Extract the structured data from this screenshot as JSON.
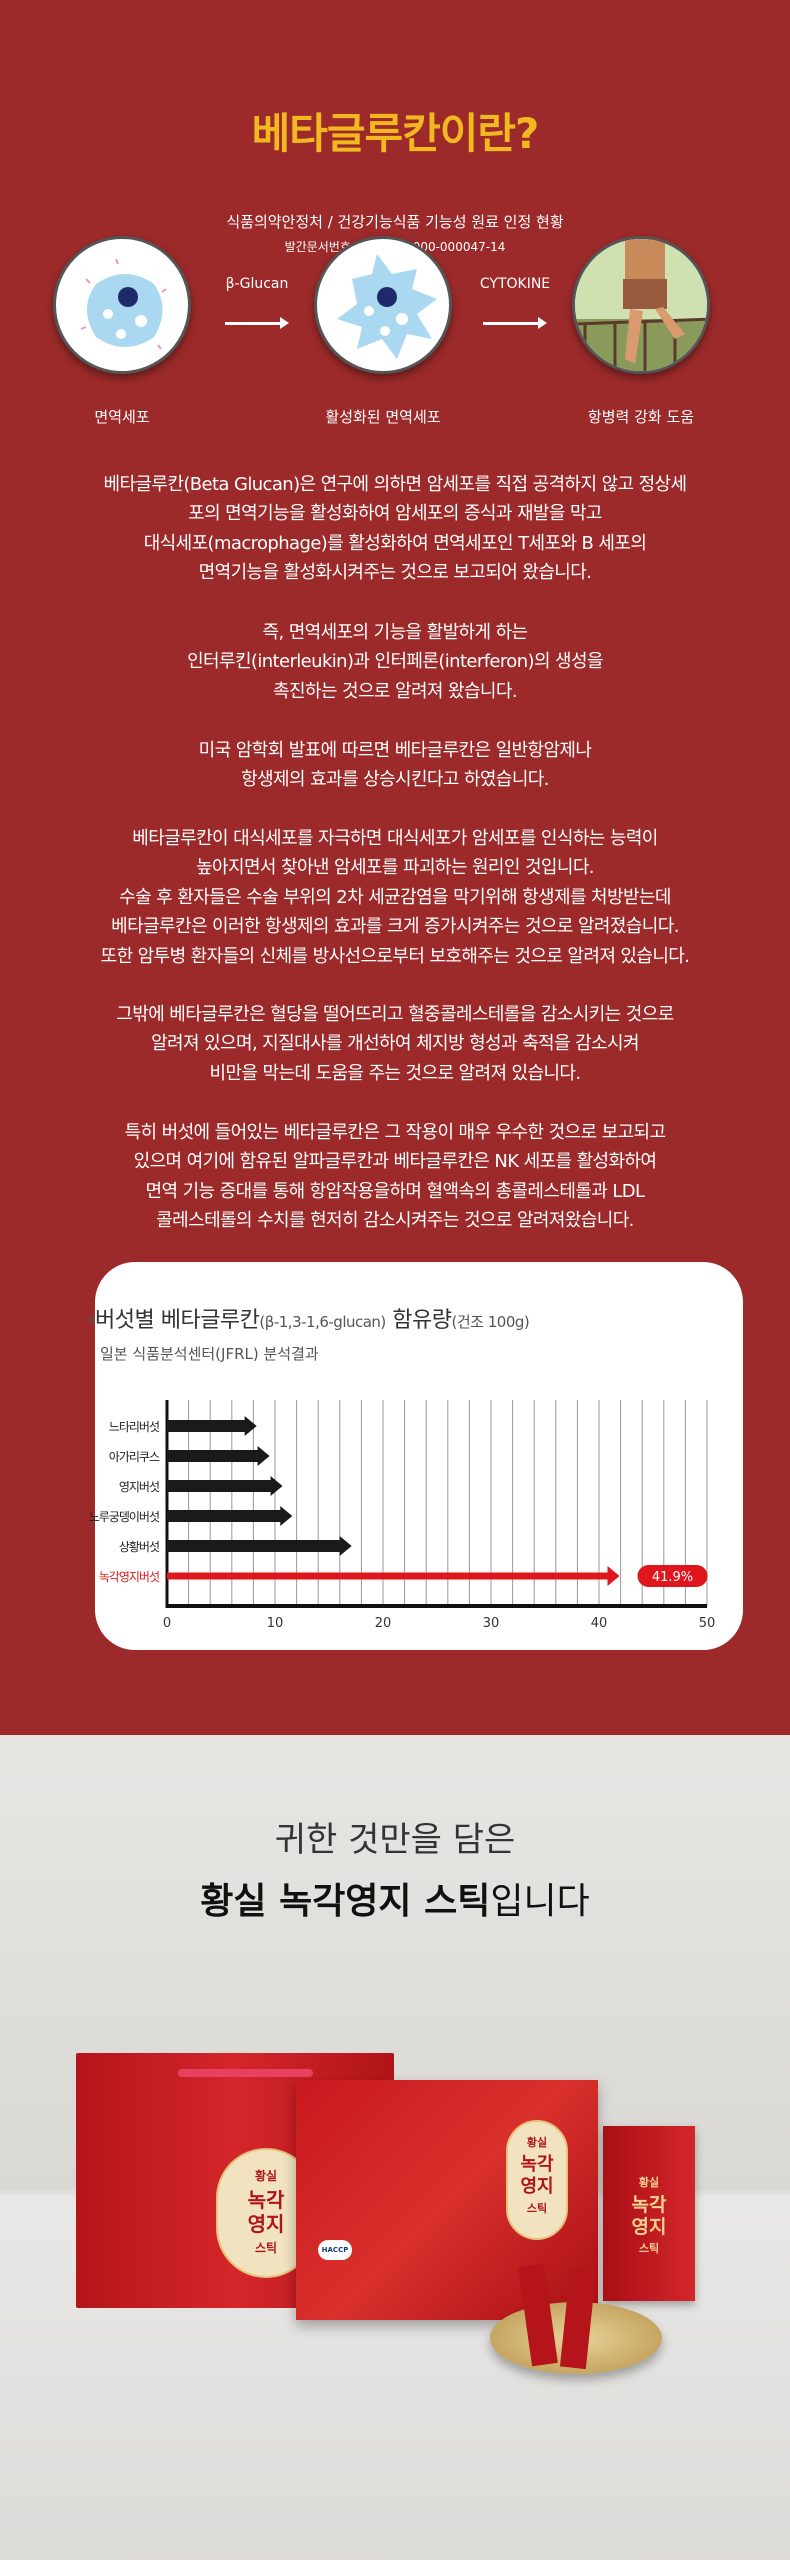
{
  "header": {
    "title": "베타글루칸이란?",
    "subtitle": "식품의약안정처 / 건강기능식품 기능성 원료 인정 현황",
    "doc_number": "발간문서번호 : 11-1471000-000047-14"
  },
  "diagram": {
    "steps": [
      {
        "label": "면역세포",
        "icon": "immune-cell-icon"
      },
      {
        "label": "활성화된 면역세포",
        "icon": "activated-cell-icon"
      },
      {
        "label": "항병력 강화 도움",
        "icon": "runner-photo"
      }
    ],
    "arrows": [
      "β-Glucan",
      "CYTOKINE"
    ]
  },
  "paragraphs": [
    [
      "베타글루칸(Beta Glucan)은 연구에 의하면 암세포를 직접 공격하지 않고 정상세",
      "포의 면역기능을 활성화하여 암세포의 증식과 재발을 막고",
      "대식세포(macrophage)를 활성화하여 면역세포인 T세포와 B 세포의",
      "면역기능을 활성화시켜주는 것으로 보고되어 왔습니다."
    ],
    [
      "즉, 면역세포의 기능을 활발하게 하는",
      "인터루킨(interleukin)과 인터페론(interferon)의 생성을",
      "촉진하는 것으로 알려져 왔습니다."
    ],
    [
      "미국 암학회 발표에 따르면 베타글루칸은 일반항암제나",
      "항생제의 효과를 상승시킨다고 하였습니다."
    ],
    [
      "베타글루칸이 대식세포를 자극하면 대식세포가 암세포를 인식하는 능력이",
      "높아지면서 찾아낸 암세포를 파괴하는 원리인 것입니다.",
      "수술 후 환자들은 수술 부위의 2차 세균감염을 막기위해 항생제를 처방받는데",
      "베타글루칸은 이러한 항생제의 효과를 크게 증가시켜주는 것으로 알려졌습니다.",
      "또한 암투병 환자들의 신체를 방사선으로부터 보호해주는 것으로 알려져 있습니다."
    ],
    [
      "그밖에 베타글루칸은 혈당을 떨어뜨리고 혈중콜레스테롤을 감소시키는 것으로",
      "알려져 있으며, 지질대사를 개선하여 체지방 형성과 축적을 감소시켜",
      "비만을 막는데 도움을 주는 것으로 알려져 있습니다."
    ],
    [
      "특히 버섯에 들어있는 베타글루칸은 그 작용이 매우 우수한 것으로 보고되고",
      "있으며 여기에 함유된 알파글루칸과 베타글루칸은 NK 세포를  활성화하여",
      "면역 기능 증대를 통해 항암작용을하며 혈액속의 총콜레스테롤과  LDL",
      "콜레스테롤의 수치를 현저히 감소시켜주는 것으로 알려져왔습니다."
    ]
  ],
  "chart_data": {
    "type": "bar",
    "orientation": "horizontal",
    "title_prefix": "*",
    "title_main": "버섯별 베타글루칸",
    "title_paren": "(β-1,3-1,6-glucan)",
    "title_main2": "함유량",
    "title_unit": "(건조 100g)",
    "subtitle": "일본 식품분석센터(JFRL) 분석결과",
    "categories": [
      "느타리버섯",
      "아가리쿠스",
      "영지버섯",
      "노루궁뎅이버섯",
      "상황버섯",
      "녹각영지버섯"
    ],
    "values": [
      8.3,
      9.5,
      10.7,
      11.6,
      17.1,
      41.9
    ],
    "highlight_index": 5,
    "highlight_label": "41.9%",
    "xlim": [
      0,
      50
    ],
    "xticks": [
      "0",
      "10",
      "20",
      "30",
      "40",
      "50"
    ],
    "grid": true,
    "colors": {
      "bar": "#1a1a1a",
      "highlight": "#e0161d"
    }
  },
  "product": {
    "line1": "귀한 것만을 담은",
    "line2_bold": "황실 녹각영지 스틱",
    "line2_rest": "입니다",
    "package_text": [
      "황실",
      "녹각",
      "영지",
      "스틱"
    ],
    "badge": "HACCP"
  },
  "colors": {
    "background": "#9c2a2a",
    "title": "#f2b81f"
  }
}
